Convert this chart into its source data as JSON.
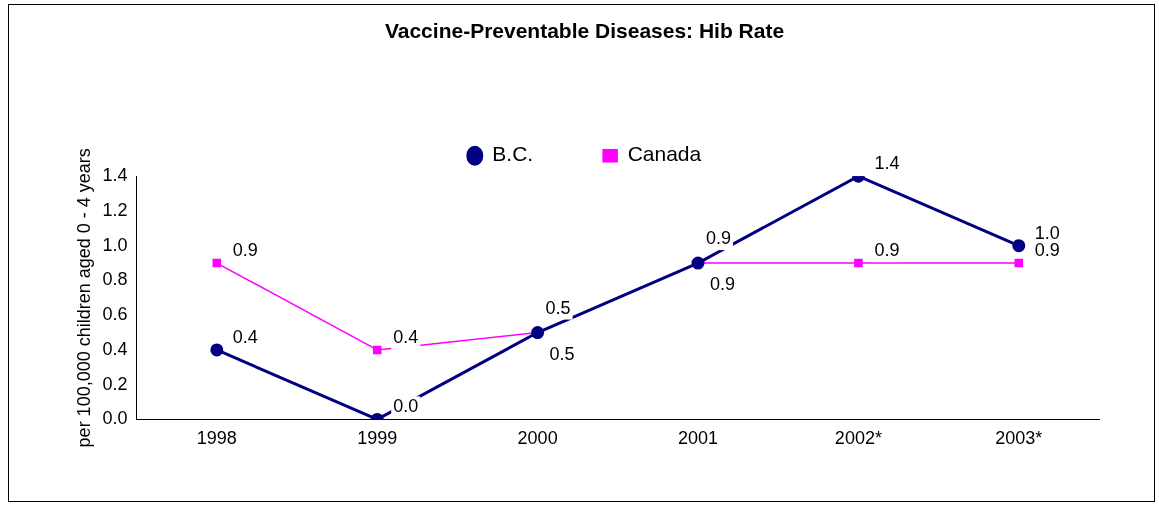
{
  "chart_data": {
    "type": "line",
    "title": "Vaccine-Preventable Diseases: Hib Rate",
    "ylabel": "per 100,000 children aged 0 - 4 years",
    "categories": [
      "1998",
      "1999",
      "2000",
      "2001",
      "2002*",
      "2003*"
    ],
    "series": [
      {
        "name": "B.C.",
        "color": "#000080",
        "marker": "circle",
        "values": [
          0.4,
          0.0,
          0.5,
          0.9,
          1.4,
          1.0
        ],
        "value_labels": [
          "0.4",
          "0.0",
          "0.5",
          "0.9",
          "1.4",
          "1.0"
        ]
      },
      {
        "name": "Canada",
        "color": "#ff00ff",
        "marker": "square",
        "values": [
          0.9,
          0.4,
          0.5,
          0.9,
          0.9,
          0.9
        ],
        "value_labels": [
          "0.9",
          "0.4",
          "0.5",
          "0.9",
          "0.9",
          "0.9"
        ]
      }
    ],
    "ylim": [
      0,
      1.4
    ],
    "yticks": [
      {
        "value": 0,
        "label": "0.0"
      },
      {
        "value": 0.2,
        "label": "0.2"
      },
      {
        "value": 0.4,
        "label": "0.4"
      },
      {
        "value": 0.6,
        "label": "0.6"
      },
      {
        "value": 0.8,
        "label": "0.8"
      },
      {
        "value": 1.0,
        "label": "1.0"
      },
      {
        "value": 1.2,
        "label": "1.2"
      },
      {
        "value": 1.4,
        "label": "1.4"
      }
    ],
    "grid": false,
    "legend": "top",
    "line_style": "solid"
  }
}
